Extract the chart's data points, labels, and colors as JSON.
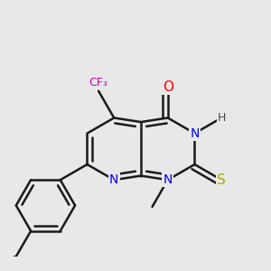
{
  "bg_color": "#e8e8e8",
  "bond_color": "#1a1a1a",
  "bond_width": 1.8,
  "atom_colors": {
    "N": "#0000ee",
    "O": "#ff0000",
    "S": "#aaaa00",
    "F": "#cc00aa",
    "H": "#444444",
    "C": "#1a1a1a"
  },
  "font_size": 10
}
